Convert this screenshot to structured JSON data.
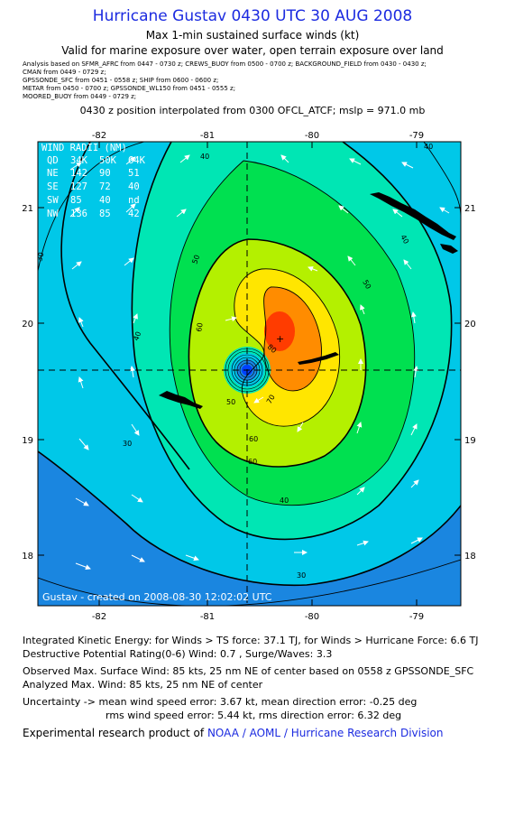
{
  "title": "Hurricane Gustav 0430 UTC 30 AUG 2008",
  "subtitle1": "Max 1-min sustained surface winds (kt)",
  "subtitle2": "Valid for marine exposure over water, open terrain exposure over land",
  "sources": [
    "Analysis based on  SFMR_AFRC from 0447 - 0730 z;  CREWS_BUOY from 0500 - 0700 z;  BACKGROUND_FIELD from 0430 - 0430 z;",
    "CMAN from 0449 - 0729 z;",
    "GPSSONDE_SFC from 0451 - 0558 z;  SHIP from 0600 - 0600 z;",
    "METAR from 0450 - 0700 z;  GPSSONDE_WL150 from 0451 - 0555 z;",
    "MOORED_BUOY from 0449 - 0729 z;"
  ],
  "position_line": "0430 z position interpolated from 0300 OFCL_ATCF; mslp = 971.0 mb",
  "map": {
    "lon_ticks": [
      "-82",
      "-81",
      "-80",
      "-79"
    ],
    "lat_ticks": [
      "21",
      "20",
      "19",
      "18"
    ],
    "center": {
      "lon": -80.6,
      "lat": 19.6
    },
    "credit": "Gustav - created on 2008-08-30 12:02:02 UTC",
    "contour_labels": [
      "30",
      "30",
      "30",
      "40",
      "40",
      "40",
      "40",
      "40",
      "50",
      "50",
      "50",
      "60",
      "60",
      "60",
      "70",
      "80"
    ],
    "colors": {
      "ocean_far": "#1a86e0",
      "c30": "#00c8e8",
      "c40": "#00e6b4",
      "c50": "#00e050",
      "c60": "#b4f000",
      "c70": "#ffe600",
      "c80": "#ff8c00",
      "c90": "#ff3c00",
      "eye": "#0040ff"
    },
    "wind_radii": {
      "header": "WIND RADII (NM)",
      "columns": [
        "QD",
        "34K",
        "50K",
        "64K"
      ],
      "rows": [
        [
          "NE",
          "142",
          "90",
          "51"
        ],
        [
          "SE",
          "127",
          "72",
          "40"
        ],
        [
          "SW",
          "85",
          "40",
          "nd"
        ],
        [
          "NW",
          "136",
          "85",
          "42"
        ]
      ]
    }
  },
  "info": {
    "ike": "Integrated Kinetic Energy:  for Winds > TS force: 37.1 TJ,  for Winds > Hurricane Force: 6.6 TJ",
    "dpr": "Destructive Potential Rating(0-6)   Wind: 0.7 , Surge/Waves: 3.3",
    "observed": "Observed Max. Surface Wind: 85 kts, 25 nm NE of center based on 0558 z GPSSONDE_SFC",
    "analyzed": "Analyzed Max. Wind: 85 kts, 25 nm NE of center",
    "uncert1": "Uncertainty -> mean wind speed error: 3.67 kt,   mean direction error:  -0.25 deg",
    "uncert2": "rms wind speed error: 5.44 kt,   rms direction error: 6.32 deg",
    "product_prefix": "Experimental research product of",
    "product_link": "NOAA / AOML / Hurricane Research Division"
  }
}
